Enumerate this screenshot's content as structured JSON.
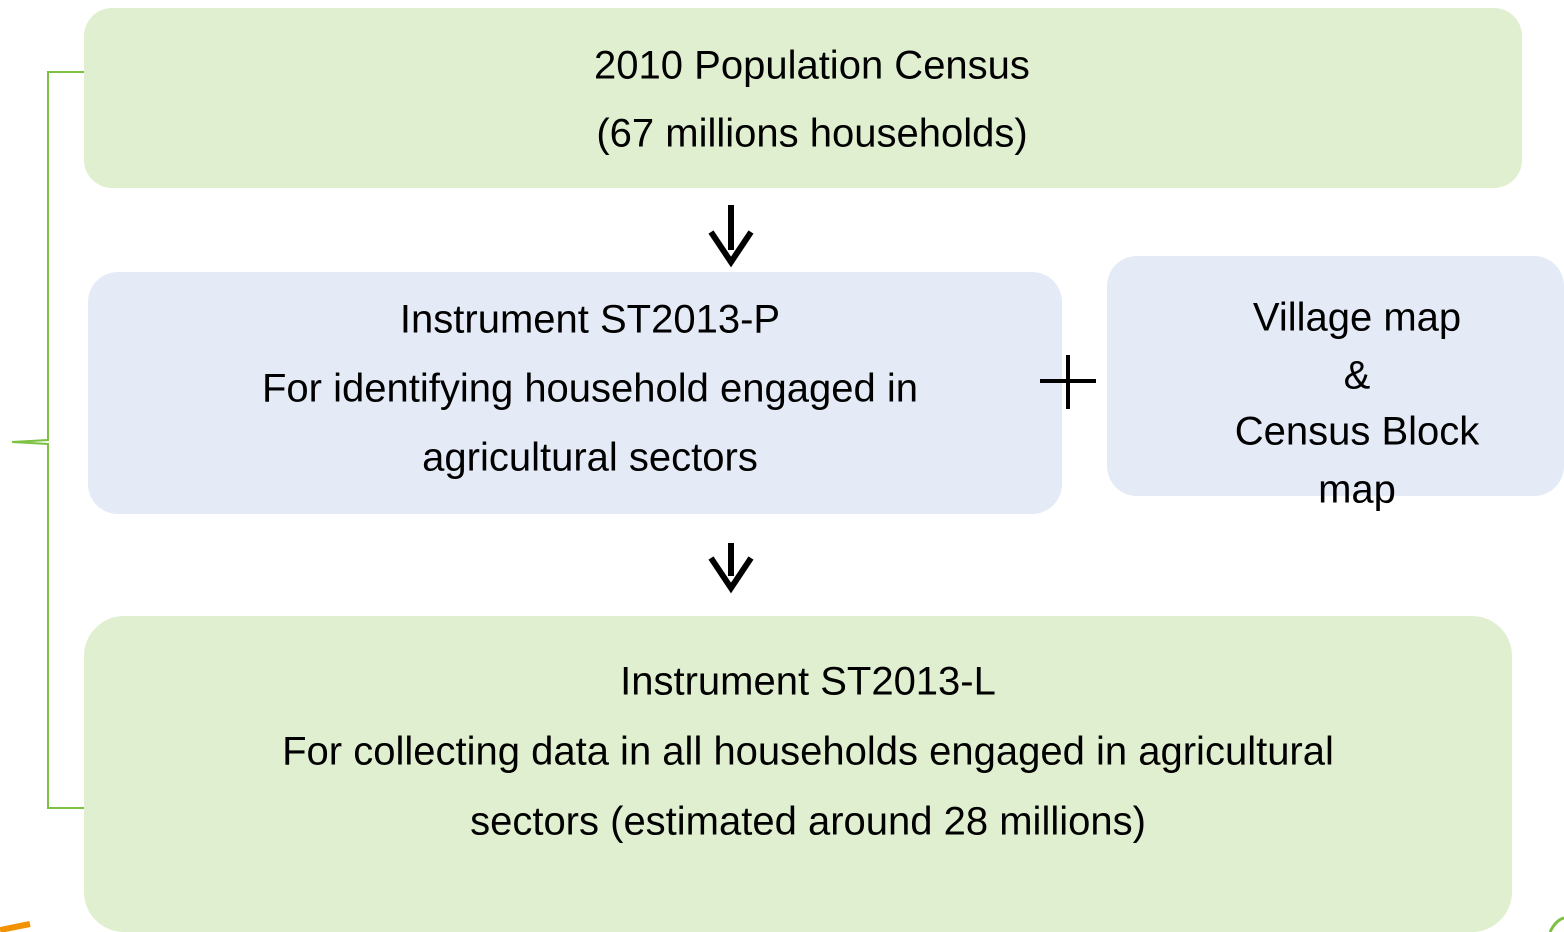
{
  "nodes": [
    {
      "lines": [
        "2010 Population Census",
        "(67 millions households)"
      ]
    },
    {
      "lines": [
        "Instrument ST2013-P",
        "For identifying household engaged in",
        "agricultural sectors"
      ]
    },
    {
      "lines": [
        "Village map",
        "&",
        "Census Block",
        "map"
      ]
    },
    {
      "lines": [
        "Instrument ST2013-L",
        "For collecting data in all households engaged in agricultural",
        "sectors (estimated around 28 millions)"
      ]
    }
  ]
}
